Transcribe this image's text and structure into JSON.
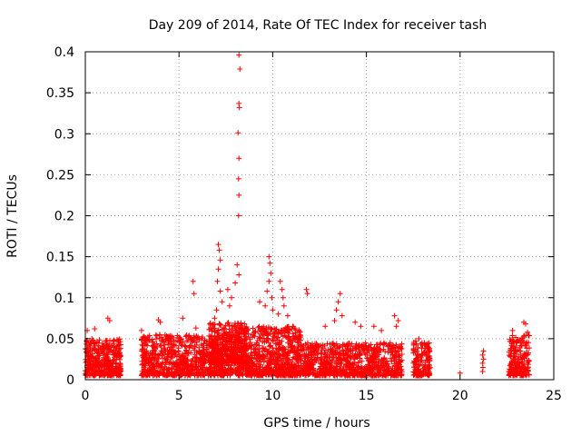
{
  "chart_data": {
    "type": "scatter",
    "title": "Day 209 of 2014, Rate Of TEC Index for receiver tash",
    "xlabel": "GPS time / hours",
    "ylabel": "ROTI / TECUs",
    "xlim": [
      0,
      25
    ],
    "ylim": [
      0,
      0.4
    ],
    "xticks": [
      0,
      5,
      10,
      15,
      20,
      25
    ],
    "xtick_labels": [
      "0",
      "5",
      "10",
      "15",
      "20",
      "25"
    ],
    "yticks": [
      0,
      0.05,
      0.1,
      0.15,
      0.2,
      0.25,
      0.3,
      0.35,
      0.4
    ],
    "ytick_labels": [
      "0",
      "0.05",
      "0.1",
      "0.15",
      "0.2",
      "0.25",
      "0.3",
      "0.35",
      "0.4"
    ],
    "grid": true,
    "marker": "plus",
    "series": [
      {
        "name": "ROTI",
        "color": "#ff0000",
        "clusters": [
          {
            "x": [
              0.0,
              1.9
            ],
            "y": [
              0.005,
              0.05
            ],
            "n": 420
          },
          {
            "x": [
              3.0,
              8.0
            ],
            "y": [
              0.005,
              0.055
            ],
            "n": 900
          },
          {
            "x": [
              6.6,
              8.6
            ],
            "y": [
              0.02,
              0.07
            ],
            "n": 300
          },
          {
            "x": [
              8.0,
              11.5
            ],
            "y": [
              0.005,
              0.065
            ],
            "n": 800
          },
          {
            "x": [
              11.5,
              16.9
            ],
            "y": [
              0.005,
              0.045
            ],
            "n": 900
          },
          {
            "x": [
              17.5,
              18.4
            ],
            "y": [
              0.005,
              0.048
            ],
            "n": 160
          },
          {
            "x": [
              22.6,
              23.7
            ],
            "y": [
              0.005,
              0.055
            ],
            "n": 220
          }
        ],
        "points": [
          {
            "x": 8.2,
            "y": 0.396
          },
          {
            "x": 8.25,
            "y": 0.379
          },
          {
            "x": 8.2,
            "y": 0.337
          },
          {
            "x": 8.22,
            "y": 0.332
          },
          {
            "x": 8.15,
            "y": 0.301
          },
          {
            "x": 8.2,
            "y": 0.27
          },
          {
            "x": 8.18,
            "y": 0.245
          },
          {
            "x": 8.2,
            "y": 0.225
          },
          {
            "x": 8.18,
            "y": 0.2
          },
          {
            "x": 8.1,
            "y": 0.14
          },
          {
            "x": 8.2,
            "y": 0.128
          },
          {
            "x": 8.0,
            "y": 0.118
          },
          {
            "x": 7.1,
            "y": 0.165
          },
          {
            "x": 7.15,
            "y": 0.158
          },
          {
            "x": 7.2,
            "y": 0.146
          },
          {
            "x": 7.1,
            "y": 0.135
          },
          {
            "x": 7.05,
            "y": 0.12
          },
          {
            "x": 7.2,
            "y": 0.108
          },
          {
            "x": 7.3,
            "y": 0.095
          },
          {
            "x": 7.0,
            "y": 0.085
          },
          {
            "x": 6.9,
            "y": 0.075
          },
          {
            "x": 7.6,
            "y": 0.11
          },
          {
            "x": 7.8,
            "y": 0.1
          },
          {
            "x": 7.7,
            "y": 0.09
          },
          {
            "x": 9.8,
            "y": 0.15
          },
          {
            "x": 9.85,
            "y": 0.142
          },
          {
            "x": 9.9,
            "y": 0.13
          },
          {
            "x": 9.8,
            "y": 0.12
          },
          {
            "x": 9.7,
            "y": 0.108
          },
          {
            "x": 9.95,
            "y": 0.1
          },
          {
            "x": 9.6,
            "y": 0.09
          },
          {
            "x": 10.0,
            "y": 0.085
          },
          {
            "x": 9.3,
            "y": 0.095
          },
          {
            "x": 10.4,
            "y": 0.12
          },
          {
            "x": 10.5,
            "y": 0.11
          },
          {
            "x": 10.55,
            "y": 0.1
          },
          {
            "x": 10.6,
            "y": 0.09
          },
          {
            "x": 10.3,
            "y": 0.08
          },
          {
            "x": 10.8,
            "y": 0.078
          },
          {
            "x": 5.75,
            "y": 0.12
          },
          {
            "x": 5.8,
            "y": 0.105
          },
          {
            "x": 11.8,
            "y": 0.11
          },
          {
            "x": 11.85,
            "y": 0.105
          },
          {
            "x": 13.6,
            "y": 0.105
          },
          {
            "x": 13.5,
            "y": 0.095
          },
          {
            "x": 13.4,
            "y": 0.085
          },
          {
            "x": 13.7,
            "y": 0.078
          },
          {
            "x": 13.3,
            "y": 0.072
          },
          {
            "x": 12.8,
            "y": 0.065
          },
          {
            "x": 14.4,
            "y": 0.07
          },
          {
            "x": 14.7,
            "y": 0.065
          },
          {
            "x": 16.5,
            "y": 0.078
          },
          {
            "x": 16.7,
            "y": 0.072
          },
          {
            "x": 16.6,
            "y": 0.065
          },
          {
            "x": 1.2,
            "y": 0.075
          },
          {
            "x": 1.3,
            "y": 0.072
          },
          {
            "x": 0.5,
            "y": 0.062
          },
          {
            "x": 0.1,
            "y": 0.06
          },
          {
            "x": 3.0,
            "y": 0.06
          },
          {
            "x": 3.9,
            "y": 0.073
          },
          {
            "x": 4.0,
            "y": 0.07
          },
          {
            "x": 5.2,
            "y": 0.075
          },
          {
            "x": 5.9,
            "y": 0.063
          },
          {
            "x": 15.4,
            "y": 0.065
          },
          {
            "x": 15.8,
            "y": 0.06
          },
          {
            "x": 17.8,
            "y": 0.05
          },
          {
            "x": 21.2,
            "y": 0.03
          },
          {
            "x": 21.25,
            "y": 0.025
          },
          {
            "x": 21.2,
            "y": 0.02
          },
          {
            "x": 21.22,
            "y": 0.015
          },
          {
            "x": 21.2,
            "y": 0.01
          },
          {
            "x": 21.25,
            "y": 0.035
          },
          {
            "x": 20.0,
            "y": 0.008
          },
          {
            "x": 23.4,
            "y": 0.07
          },
          {
            "x": 23.5,
            "y": 0.068
          },
          {
            "x": 22.8,
            "y": 0.06
          },
          {
            "x": 23.6,
            "y": 0.058
          },
          {
            "x": 18.1,
            "y": 0.045
          }
        ]
      }
    ]
  }
}
